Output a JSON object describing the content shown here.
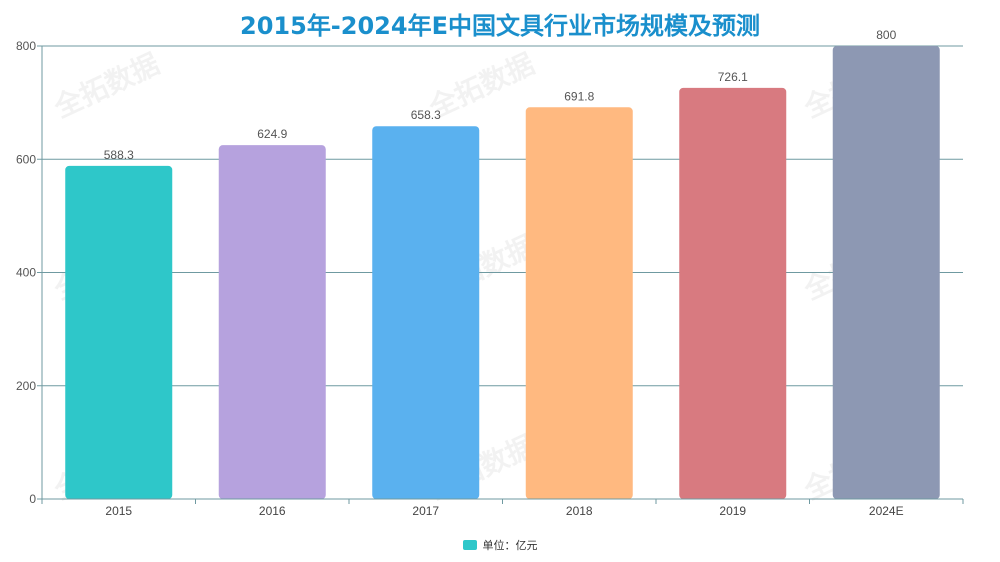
{
  "chart_data": {
    "type": "bar",
    "title": "2015年-2024年E中国文具行业市场规模及预测",
    "categories": [
      "2015",
      "2016",
      "2017",
      "2018",
      "2019",
      "2024E"
    ],
    "values": [
      588.3,
      624.9,
      658.3,
      691.8,
      726.1,
      800
    ],
    "value_labels": [
      "588.3",
      "624.9",
      "658.3",
      "691.8",
      "726.1",
      "800"
    ],
    "bar_colors": [
      "#2ec7c9",
      "#b6a2de",
      "#5ab1ef",
      "#ffb980",
      "#d87a80",
      "#8d98b3"
    ],
    "ylim": [
      0,
      800
    ],
    "yticks": [
      0,
      200,
      400,
      600,
      800
    ],
    "grid": true,
    "legend": {
      "label": "单位：亿元",
      "color": "#2ec7c9",
      "placement": "bottom-center"
    }
  },
  "watermark": "全拓数据",
  "colors": {
    "title": "#1a8fcc",
    "grid": "#6f9aa1"
  }
}
